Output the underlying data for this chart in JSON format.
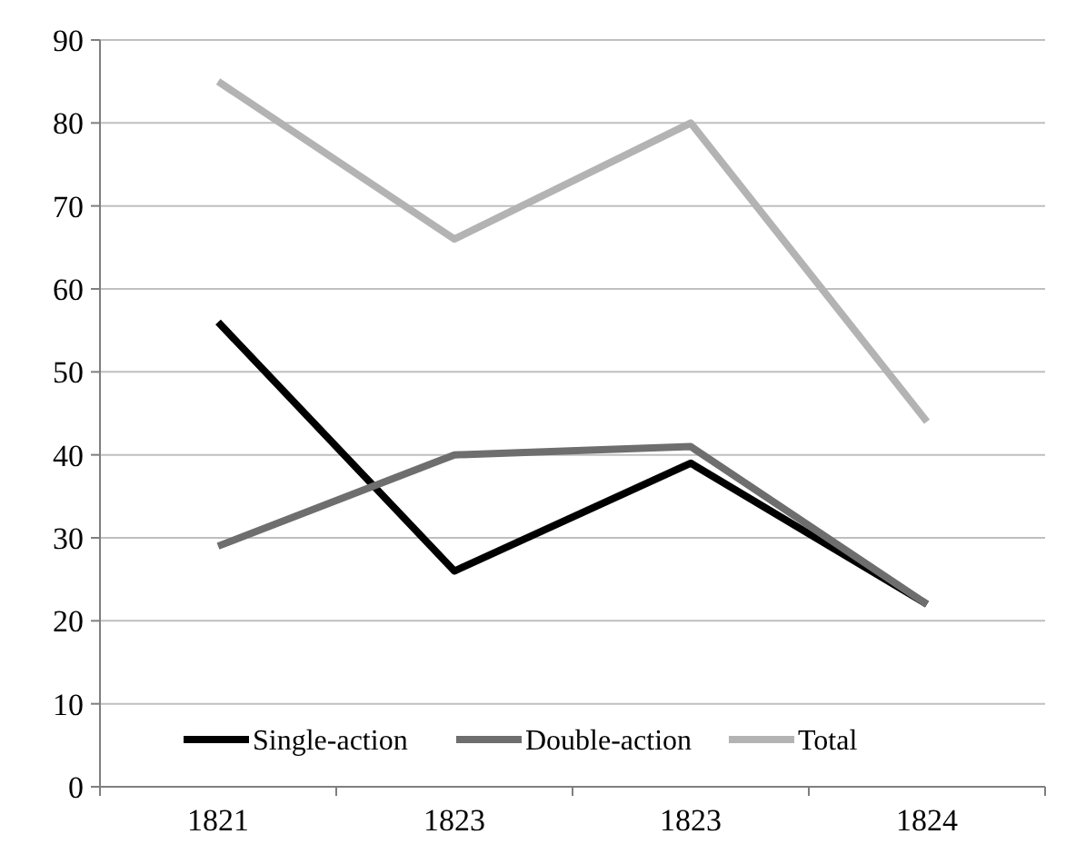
{
  "chart_data": {
    "type": "line",
    "categories": [
      "1821",
      "1823",
      "1823",
      "1824"
    ],
    "series": [
      {
        "name": "Single-action",
        "color": "#000000",
        "values": [
          56,
          26,
          39,
          22
        ]
      },
      {
        "name": "Double-action",
        "color": "#6e6e6e",
        "values": [
          29,
          40,
          41,
          22
        ]
      },
      {
        "name": "Total",
        "color": "#b3b3b3",
        "values": [
          85,
          66,
          80,
          44
        ]
      }
    ],
    "ylim": [
      0,
      90
    ],
    "yticks": [
      0,
      10,
      20,
      30,
      40,
      50,
      60,
      70,
      80,
      90
    ],
    "grid": "y",
    "legend": "bottom",
    "marker": "none",
    "line_style": "solid"
  }
}
